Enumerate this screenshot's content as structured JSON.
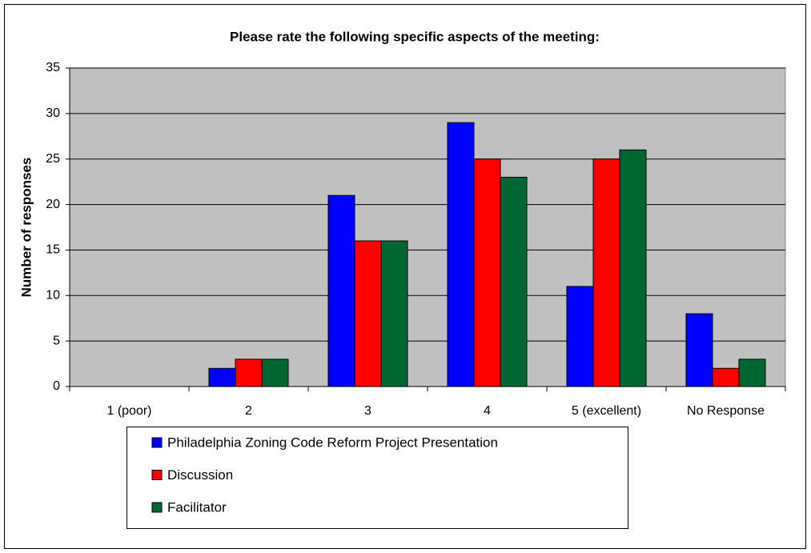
{
  "chart_data": {
    "type": "bar",
    "title": "Please rate the following specific aspects of the meeting:",
    "y_label": "Number of responses",
    "categories": [
      "1 (poor)",
      "2",
      "3",
      "4",
      "5 (excellent)",
      "No Response"
    ],
    "series": [
      {
        "name": "Philadelphia Zoning Code Reform Project Presentation",
        "color": "#0000ff",
        "values": [
          0,
          2,
          21,
          29,
          11,
          8
        ]
      },
      {
        "name": "Discussion",
        "color": "#ff0000",
        "values": [
          0,
          3,
          16,
          25,
          25,
          2
        ]
      },
      {
        "name": "Facilitator",
        "color": "#006633",
        "values": [
          0,
          3,
          16,
          23,
          26,
          3
        ]
      }
    ],
    "ylim": [
      0,
      35
    ],
    "yticks": [
      0,
      5,
      10,
      15,
      20,
      25,
      30,
      35
    ],
    "grid": true,
    "legend": "bottom"
  }
}
